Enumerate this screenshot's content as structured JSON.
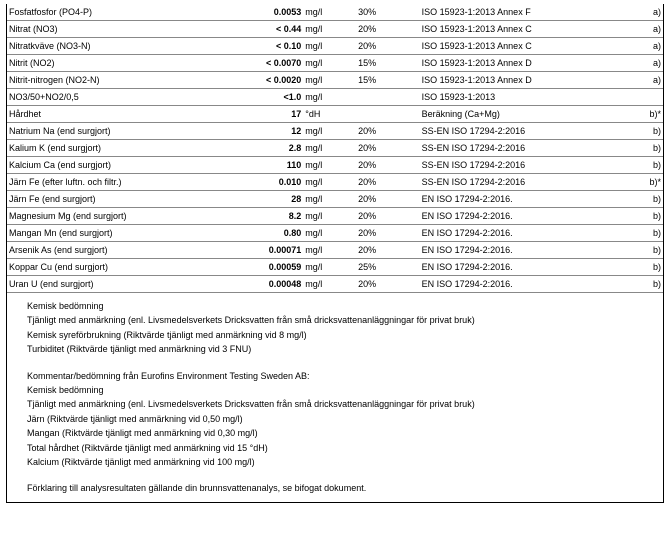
{
  "rows": [
    {
      "param": "Fosfatfosfor (PO4-P)",
      "value": "0.0053",
      "unit": "mg/l",
      "pct": "30%",
      "method": "ISO 15923-1:2013 Annex F",
      "note": "a)"
    },
    {
      "param": "Nitrat (NO3)",
      "value": "< 0.44",
      "unit": "mg/l",
      "pct": "20%",
      "method": "ISO 15923-1:2013 Annex C",
      "note": "a)"
    },
    {
      "param": "Nitratkväve (NO3-N)",
      "value": "< 0.10",
      "unit": "mg/l",
      "pct": "20%",
      "method": "ISO 15923-1:2013 Annex C",
      "note": "a)"
    },
    {
      "param": "Nitrit (NO2)",
      "value": "< 0.0070",
      "unit": "mg/l",
      "pct": "15%",
      "method": "ISO 15923-1:2013 Annex D",
      "note": "a)"
    },
    {
      "param": "Nitrit-nitrogen (NO2-N)",
      "value": "< 0.0020",
      "unit": "mg/l",
      "pct": "15%",
      "method": "ISO 15923-1:2013 Annex D",
      "note": "a)"
    },
    {
      "param": "NO3/50+NO2/0,5",
      "value": "<1.0",
      "unit": "mg/l",
      "pct": "",
      "method": "ISO 15923-1:2013",
      "note": ""
    },
    {
      "param": "Hårdhet",
      "value": "17",
      "unit": "°dH",
      "pct": "",
      "method": "Beräkning (Ca+Mg)",
      "note": "b)*"
    },
    {
      "param": "Natrium Na (end surgjort)",
      "value": "12",
      "unit": "mg/l",
      "pct": "20%",
      "method": "SS-EN ISO 17294-2:2016",
      "note": "b)"
    },
    {
      "param": "Kalium K (end surgjort)",
      "value": "2.8",
      "unit": "mg/l",
      "pct": "20%",
      "method": "SS-EN ISO 17294-2:2016",
      "note": "b)"
    },
    {
      "param": "Kalcium Ca (end surgjort)",
      "value": "110",
      "unit": "mg/l",
      "pct": "20%",
      "method": "SS-EN ISO 17294-2:2016",
      "note": "b)"
    },
    {
      "param": "Järn Fe (efter luftn. och filtr.)",
      "value": "0.010",
      "unit": "mg/l",
      "pct": "20%",
      "method": "SS-EN ISO 17294-2:2016",
      "note": "b)*"
    },
    {
      "param": "Järn Fe (end surgjort)",
      "value": "28",
      "unit": "mg/l",
      "pct": "20%",
      "method": "EN ISO 17294-2:2016.",
      "note": "b)"
    },
    {
      "param": "Magnesium Mg (end surgjort)",
      "value": "8.2",
      "unit": "mg/l",
      "pct": "20%",
      "method": "EN ISO 17294-2:2016.",
      "note": "b)"
    },
    {
      "param": "Mangan Mn (end surgjort)",
      "value": "0.80",
      "unit": "mg/l",
      "pct": "20%",
      "method": "EN ISO 17294-2:2016.",
      "note": "b)"
    },
    {
      "param": "Arsenik As (end surgjort)",
      "value": "0.00071",
      "unit": "mg/l",
      "pct": "20%",
      "method": "EN ISO 17294-2:2016.",
      "note": "b)"
    },
    {
      "param": "Koppar Cu (end surgjort)",
      "value": "0.00059",
      "unit": "mg/l",
      "pct": "25%",
      "method": "EN ISO 17294-2:2016.",
      "note": "b)"
    },
    {
      "param": "Uran U (end surgjort)",
      "value": "0.00048",
      "unit": "mg/l",
      "pct": "20%",
      "method": "EN ISO 17294-2:2016.",
      "note": "b)"
    }
  ],
  "notes1": [
    "Kemisk bedömning",
    "Tjänligt med anmärkning (enl. Livsmedelsverkets Dricksvatten från små dricksvattenanläggningar för privat bruk)",
    "Kemisk syreförbrukning (Riktvärde tjänligt med anmärkning vid 8 mg/l)",
    "Turbiditet (Riktvärde tjänligt med anmärkning vid 3 FNU)"
  ],
  "notes2": [
    "Kommentar/bedömning från Eurofins Environment Testing Sweden AB:",
    "Kemisk bedömning",
    "Tjänligt med anmärkning (enl. Livsmedelsverkets Dricksvatten från små dricksvattenanläggningar för privat bruk)",
    "Järn (Riktvärde tjänligt med anmärkning vid 0,50 mg/l)",
    "Mangan (Riktvärde tjänligt med anmärkning vid 0,30 mg/l)",
    "Total hårdhet (Riktvärde tjänligt med anmärkning vid 15 °dH)",
    "Kalcium (Riktvärde tjänligt med anmärkning vid 100 mg/l)"
  ],
  "notes3": [
    "Förklaring till analysresultaten gällande din brunnsvattenanalys, se bifogat dokument."
  ]
}
